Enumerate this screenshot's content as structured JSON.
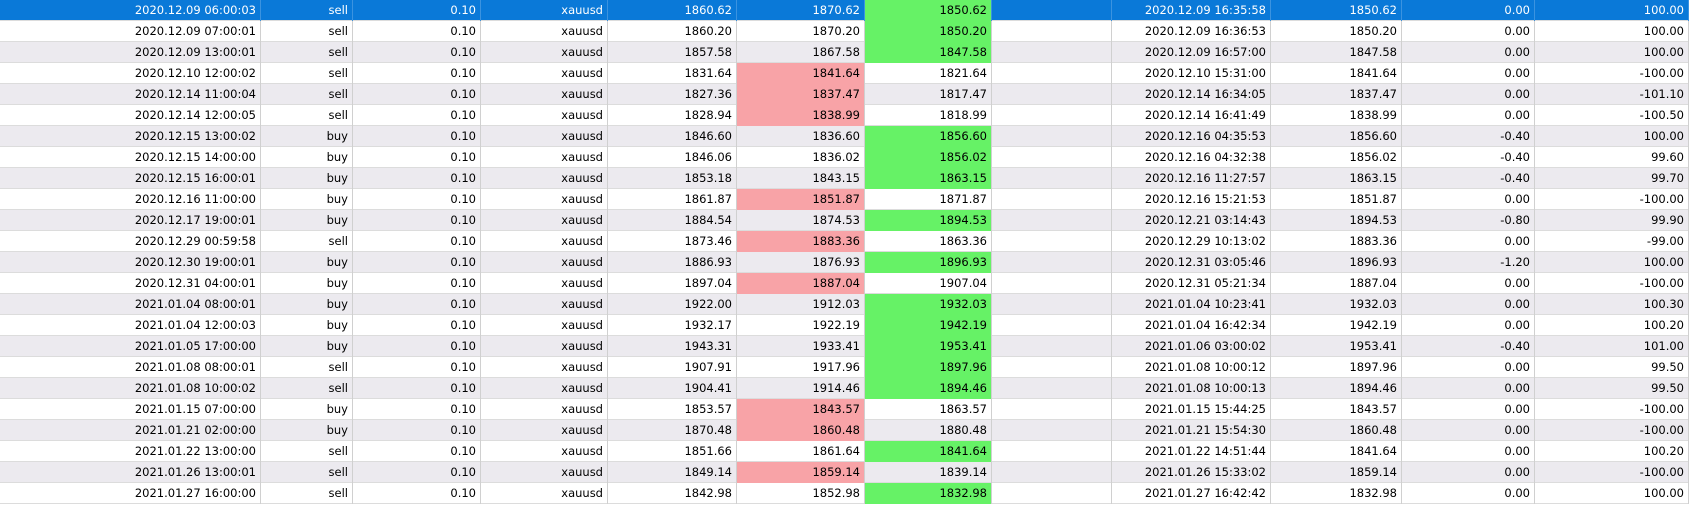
{
  "colors": {
    "selected_row": "#0a79d8",
    "loss_highlight": "#f8a3a7",
    "profit_highlight": "#66f266",
    "alt_row": "#eceaef"
  },
  "rows": [
    [
      "2020.12.09 06:00:03",
      "sell",
      "0.10",
      "xauusd",
      "1860.62",
      "1870.62",
      "1850.62",
      "",
      "2020.12.09 16:35:58",
      "1850.62",
      "0.00",
      "100.00"
    ],
    [
      "2020.12.09 07:00:01",
      "sell",
      "0.10",
      "xauusd",
      "1860.20",
      "1870.20",
      "1850.20",
      "",
      "2020.12.09 16:36:53",
      "1850.20",
      "0.00",
      "100.00"
    ],
    [
      "2020.12.09 13:00:01",
      "sell",
      "0.10",
      "xauusd",
      "1857.58",
      "1867.58",
      "1847.58",
      "",
      "2020.12.09 16:57:00",
      "1847.58",
      "0.00",
      "100.00"
    ],
    [
      "2020.12.10 12:00:02",
      "sell",
      "0.10",
      "xauusd",
      "1831.64",
      "1841.64",
      "1821.64",
      "",
      "2020.12.10 15:31:00",
      "1841.64",
      "0.00",
      "-100.00"
    ],
    [
      "2020.12.14 11:00:04",
      "sell",
      "0.10",
      "xauusd",
      "1827.36",
      "1837.47",
      "1817.47",
      "",
      "2020.12.14 16:34:05",
      "1837.47",
      "0.00",
      "-101.10"
    ],
    [
      "2020.12.14 12:00:05",
      "sell",
      "0.10",
      "xauusd",
      "1828.94",
      "1838.99",
      "1818.99",
      "",
      "2020.12.14 16:41:49",
      "1838.99",
      "0.00",
      "-100.50"
    ],
    [
      "2020.12.15 13:00:02",
      "buy",
      "0.10",
      "xauusd",
      "1846.60",
      "1836.60",
      "1856.60",
      "",
      "2020.12.16 04:35:53",
      "1856.60",
      "-0.40",
      "100.00"
    ],
    [
      "2020.12.15 14:00:00",
      "buy",
      "0.10",
      "xauusd",
      "1846.06",
      "1836.02",
      "1856.02",
      "",
      "2020.12.16 04:32:38",
      "1856.02",
      "-0.40",
      "99.60"
    ],
    [
      "2020.12.15 16:00:01",
      "buy",
      "0.10",
      "xauusd",
      "1853.18",
      "1843.15",
      "1863.15",
      "",
      "2020.12.16 11:27:57",
      "1863.15",
      "-0.40",
      "99.70"
    ],
    [
      "2020.12.16 11:00:00",
      "buy",
      "0.10",
      "xauusd",
      "1861.87",
      "1851.87",
      "1871.87",
      "",
      "2020.12.16 15:21:53",
      "1851.87",
      "0.00",
      "-100.00"
    ],
    [
      "2020.12.17 19:00:01",
      "buy",
      "0.10",
      "xauusd",
      "1884.54",
      "1874.53",
      "1894.53",
      "",
      "2020.12.21 03:14:43",
      "1894.53",
      "-0.80",
      "99.90"
    ],
    [
      "2020.12.29 00:59:58",
      "sell",
      "0.10",
      "xauusd",
      "1873.46",
      "1883.36",
      "1863.36",
      "",
      "2020.12.29 10:13:02",
      "1883.36",
      "0.00",
      "-99.00"
    ],
    [
      "2020.12.30 19:00:01",
      "buy",
      "0.10",
      "xauusd",
      "1886.93",
      "1876.93",
      "1896.93",
      "",
      "2020.12.31 03:05:46",
      "1896.93",
      "-1.20",
      "100.00"
    ],
    [
      "2020.12.31 04:00:01",
      "buy",
      "0.10",
      "xauusd",
      "1897.04",
      "1887.04",
      "1907.04",
      "",
      "2020.12.31 05:21:34",
      "1887.04",
      "0.00",
      "-100.00"
    ],
    [
      "2021.01.04 08:00:01",
      "buy",
      "0.10",
      "xauusd",
      "1922.00",
      "1912.03",
      "1932.03",
      "",
      "2021.01.04 10:23:41",
      "1932.03",
      "0.00",
      "100.30"
    ],
    [
      "2021.01.04 12:00:03",
      "buy",
      "0.10",
      "xauusd",
      "1932.17",
      "1922.19",
      "1942.19",
      "",
      "2021.01.04 16:42:34",
      "1942.19",
      "0.00",
      "100.20"
    ],
    [
      "2021.01.05 17:00:00",
      "buy",
      "0.10",
      "xauusd",
      "1943.31",
      "1933.41",
      "1953.41",
      "",
      "2021.01.06 03:00:02",
      "1953.41",
      "-0.40",
      "101.00"
    ],
    [
      "2021.01.08 08:00:01",
      "sell",
      "0.10",
      "xauusd",
      "1907.91",
      "1917.96",
      "1897.96",
      "",
      "2021.01.08 10:00:12",
      "1897.96",
      "0.00",
      "99.50"
    ],
    [
      "2021.01.08 10:00:02",
      "sell",
      "0.10",
      "xauusd",
      "1904.41",
      "1914.46",
      "1894.46",
      "",
      "2021.01.08 10:00:13",
      "1894.46",
      "0.00",
      "99.50"
    ],
    [
      "2021.01.15 07:00:00",
      "buy",
      "0.10",
      "xauusd",
      "1853.57",
      "1843.57",
      "1863.57",
      "",
      "2021.01.15 15:44:25",
      "1843.57",
      "0.00",
      "-100.00"
    ],
    [
      "2021.01.21 02:00:00",
      "buy",
      "0.10",
      "xauusd",
      "1870.48",
      "1860.48",
      "1880.48",
      "",
      "2021.01.21 15:54:30",
      "1860.48",
      "0.00",
      "-100.00"
    ],
    [
      "2021.01.22 13:00:00",
      "sell",
      "0.10",
      "xauusd",
      "1851.66",
      "1861.64",
      "1841.64",
      "",
      "2021.01.22 14:51:44",
      "1841.64",
      "0.00",
      "100.20"
    ],
    [
      "2021.01.26 13:00:01",
      "sell",
      "0.10",
      "xauusd",
      "1849.14",
      "1859.14",
      "1839.14",
      "",
      "2021.01.26 15:33:02",
      "1859.14",
      "0.00",
      "-100.00"
    ],
    [
      "2021.01.27 16:00:00",
      "sell",
      "0.10",
      "xauusd",
      "1842.98",
      "1852.98",
      "1832.98",
      "",
      "2021.01.27 16:42:42",
      "1832.98",
      "0.00",
      "100.00"
    ]
  ]
}
